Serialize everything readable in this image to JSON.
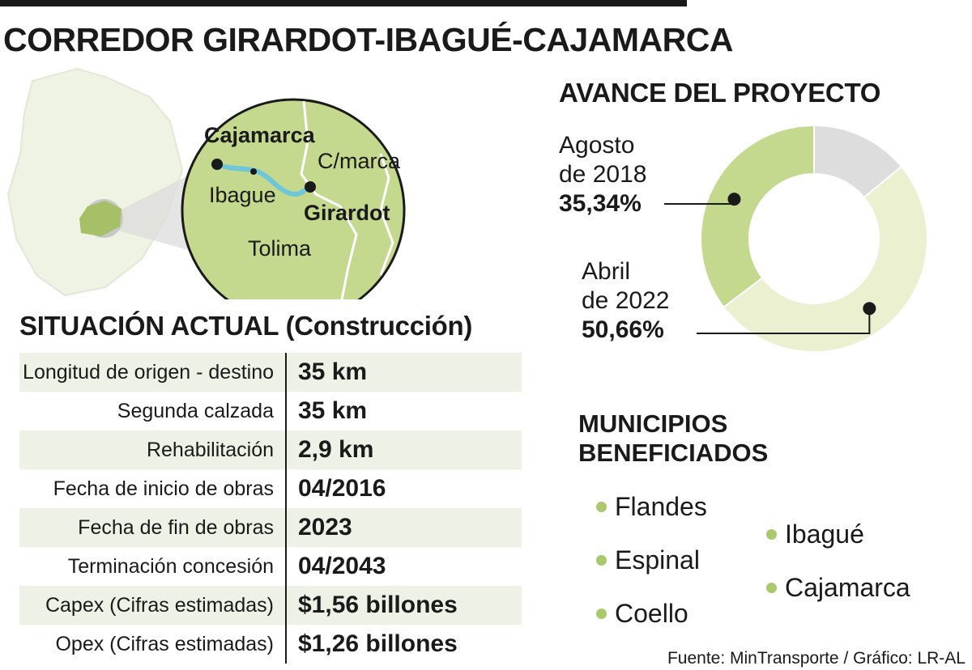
{
  "title": "CORREDOR GIRARDOT-IBAGUÉ-CAJAMARCA",
  "map": {
    "labels": {
      "cajamarca": "Cajamarca",
      "cmarca": "C/marca",
      "ibague": "Ibague",
      "girardot": "Girardot",
      "tolima": "Tolima"
    }
  },
  "situacion": {
    "title": "SITUACIÓN ACTUAL",
    "subtitle": "(Construcción)",
    "rows": [
      {
        "label": "Longitud de origen - destino",
        "value": "35 km"
      },
      {
        "label": "Segunda calzada",
        "value": "35 km"
      },
      {
        "label": "Rehabilitación",
        "value": "2,9 km"
      },
      {
        "label": "Fecha de inicio de obras",
        "value": "04/2016"
      },
      {
        "label": "Fecha de fin de obras",
        "value": "2023"
      },
      {
        "label": "Terminación concesión",
        "value": "04/2043"
      },
      {
        "label": "Capex (Cifras estimadas)",
        "value": "$1,56 billones"
      },
      {
        "label": "Opex (Cifras estimadas)",
        "value": "$1,26 billones"
      }
    ]
  },
  "avance": {
    "title": "AVANCE DEL PROYECTO",
    "label1": {
      "line1": "Agosto",
      "line2": "de 2018",
      "pct": "35,34%"
    },
    "label2": {
      "line1": "Abril",
      "line2": "de 2022",
      "pct": "50,66%"
    }
  },
  "chart_data": {
    "type": "pie",
    "title": "AVANCE DEL PROYECTO",
    "categories": [
      "Agosto de 2018",
      "Abril de 2022"
    ],
    "values": [
      35.34,
      50.66
    ],
    "unit": "%",
    "cumulative": true,
    "remaining_color": "#dddddd",
    "colors": [
      "#c4d98e",
      "#eaf0d0"
    ]
  },
  "municipios": {
    "title_line1": "MUNICIPIOS",
    "title_line2": "BENEFICIADOS",
    "items": [
      "Flandes",
      "Espinal",
      "Coello",
      "Ibagué",
      "Cajamarca"
    ]
  },
  "source": "Fuente: MinTransporte / Gráfico: LR-AL",
  "colors": {
    "green": "#c4d98e",
    "light_green": "#eaf0d0",
    "grey": "#dddddd",
    "river": "#6ec6d9",
    "dot_green": "#a9c96b",
    "row_shade": "#eef1e6"
  }
}
